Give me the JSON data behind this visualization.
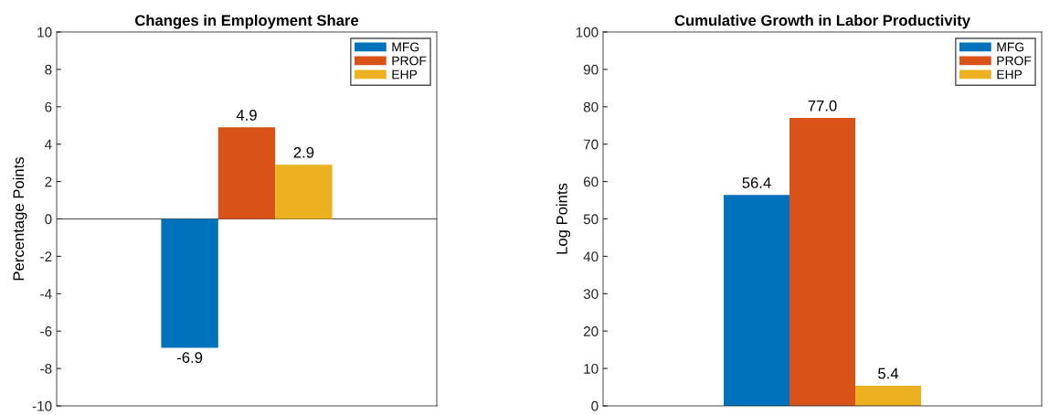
{
  "chart_data": [
    {
      "type": "bar",
      "title": "Changes in Employment Share",
      "ylabel": "Percentage Points",
      "categories": [
        null
      ],
      "series": [
        {
          "name": "MFG",
          "color": "#0072bd",
          "values": [
            -6.9
          ],
          "value_labels": [
            "-6.9"
          ]
        },
        {
          "name": "PROF",
          "color": "#d95319",
          "values": [
            4.9
          ],
          "value_labels": [
            "4.9"
          ]
        },
        {
          "name": "EHP",
          "color": "#edb120",
          "values": [
            2.9
          ],
          "value_labels": [
            "2.9"
          ]
        }
      ],
      "ylim": [
        -10,
        10
      ],
      "yticks": [
        -10,
        -8,
        -6,
        -4,
        -2,
        0,
        2,
        4,
        6,
        8,
        10
      ],
      "ref_lines": [
        {
          "axis": "y",
          "value": 0,
          "color": "#262626"
        }
      ],
      "legend": "top right",
      "tick_labels": "y",
      "grid": false
    },
    {
      "type": "bar",
      "title": "Cumulative Growth in Labor Productivity",
      "ylabel": "Log Points",
      "categories": [
        null
      ],
      "series": [
        {
          "name": "MFG",
          "color": "#0072bd",
          "values": [
            56.4
          ],
          "value_labels": [
            "56.4"
          ]
        },
        {
          "name": "PROF",
          "color": "#d95319",
          "values": [
            77.0
          ],
          "value_labels": [
            "77.0"
          ]
        },
        {
          "name": "EHP",
          "color": "#edb120",
          "values": [
            5.4
          ],
          "value_labels": [
            "5.4"
          ]
        }
      ],
      "ylim": [
        0,
        100
      ],
      "yticks": [
        0,
        10,
        20,
        30,
        40,
        50,
        60,
        70,
        80,
        90,
        100
      ],
      "legend": "top right",
      "tick_labels": "y",
      "grid": false
    }
  ]
}
